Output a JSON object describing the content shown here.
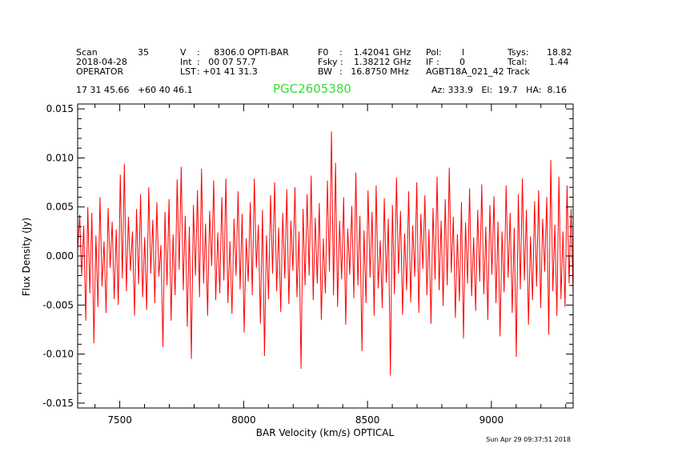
{
  "header": {
    "row1": [
      {
        "k": "Scan",
        "v": "35"
      },
      {
        "k": "V",
        "v": ":     8306.0 OPTI-BAR"
      },
      {
        "k": "F0",
        "v": ":    1.42041 GHz"
      },
      {
        "k": "Pol:",
        "v": "l"
      },
      {
        "k": "Tsys:",
        "v": "18.82"
      }
    ],
    "row2": [
      {
        "k": "2018-04-28",
        "v": ""
      },
      {
        "k": "Int",
        "v": ":   00 07 57.7"
      },
      {
        "k": "Fsky :",
        "v": "1.38212 GHz"
      },
      {
        "k": "IF :",
        "v": "0"
      },
      {
        "k": "Tcal:",
        "v": "1.44"
      }
    ],
    "row3": [
      {
        "k": "OPERATOR",
        "v": ""
      },
      {
        "k": "LST",
        "v": ": +01 41 31.3"
      },
      {
        "k": "BW",
        "v": ":   16.8750 MHz"
      },
      {
        "k": "AGBT18A_021_42 Track",
        "v": ""
      }
    ],
    "coords": "17 31 45.66   +60 40 46.1",
    "source_name": "PGC2605380",
    "pointing": "Az: 333.9   El:  19.7   HA:  8.16"
  },
  "timestamp": "Sun Apr 29 09:37:51 2018",
  "colors": {
    "trace": "#ff0000",
    "source": "#33dd33",
    "axis": "#000000"
  },
  "chart_data": {
    "type": "line",
    "title": "PGC2605380",
    "xlabel": "BAR Velocity (km/s) OPTICAL",
    "ylabel": "Flux Density (Jy)",
    "xlim": [
      7330,
      9330
    ],
    "ylim": [
      -0.0155,
      0.0155
    ],
    "xticks": [
      7500,
      8000,
      8500,
      9000
    ],
    "xtick_labels": [
      "7500",
      "8000",
      "8500",
      "9000"
    ],
    "yticks": [
      -0.015,
      -0.01,
      -0.005,
      0.0,
      0.005,
      0.01,
      0.015
    ],
    "ytick_labels": [
      "-0.015",
      "-0.010",
      "-0.005",
      "0.000",
      "0.005",
      "0.010",
      "0.015"
    ],
    "series": [
      {
        "name": "Flux density",
        "x_start": 7330,
        "x_end": 9330,
        "values": [
          0.0005,
          0.0042,
          -0.002,
          0.0031,
          -0.0066,
          0.005,
          -0.0038,
          0.0044,
          -0.0089,
          0.0021,
          -0.0052,
          0.006,
          -0.0031,
          0.0015,
          -0.0058,
          0.0049,
          -0.0012,
          0.0035,
          -0.0044,
          0.0027,
          -0.005,
          0.0083,
          -0.0023,
          0.0094,
          -0.0036,
          0.004,
          -0.0015,
          0.0025,
          -0.0061,
          0.0048,
          -0.0029,
          0.0063,
          -0.0042,
          0.0019,
          -0.0055,
          0.007,
          -0.0018,
          0.0037,
          -0.0048,
          0.0055,
          -0.0021,
          0.0011,
          -0.0093,
          0.0045,
          -0.003,
          0.0058,
          -0.0066,
          0.0022,
          -0.004,
          0.0078,
          -0.0014,
          0.0091,
          -0.0035,
          0.0041,
          -0.0072,
          0.003,
          -0.0105,
          0.0052,
          -0.002,
          0.0067,
          -0.0042,
          0.0089,
          -0.0028,
          0.0033,
          -0.0061,
          0.0046,
          -0.001,
          0.0077,
          -0.0045,
          0.0024,
          -0.0038,
          0.006,
          -0.0025,
          0.0079,
          -0.0048,
          0.0015,
          -0.0059,
          0.0038,
          -0.002,
          0.0066,
          -0.0034,
          0.0043,
          -0.0078,
          0.0018,
          -0.0026,
          0.0055,
          -0.004,
          0.0079,
          -0.0012,
          0.0032,
          -0.0069,
          0.0047,
          -0.0102,
          0.0021,
          -0.0044,
          0.0062,
          -0.0018,
          0.0075,
          -0.0036,
          0.0029,
          -0.0057,
          0.0044,
          -0.0023,
          0.0068,
          -0.0049,
          0.0036,
          -0.0015,
          0.007,
          -0.0042,
          0.0025,
          -0.0115,
          0.0048,
          -0.003,
          0.0063,
          -0.002,
          0.0082,
          -0.0045,
          0.0039,
          -0.0028,
          0.0054,
          -0.0065,
          0.0018,
          -0.0038,
          0.0077,
          -0.0016,
          0.0127,
          -0.004,
          0.0095,
          -0.0052,
          0.0036,
          -0.0024,
          0.006,
          -0.007,
          0.0028,
          -0.0019,
          0.0051,
          -0.0043,
          0.0085,
          -0.003,
          0.0041,
          -0.0097,
          0.0026,
          -0.0048,
          0.0067,
          -0.0022,
          0.0045,
          -0.0061,
          0.0072,
          -0.0033,
          0.0016,
          -0.0053,
          0.0059,
          -0.0027,
          0.0038,
          -0.0122,
          0.0052,
          -0.0039,
          0.008,
          -0.0018,
          0.0046,
          -0.006,
          0.0023,
          -0.0035,
          0.0066,
          -0.0047,
          0.0031,
          -0.0021,
          0.0075,
          -0.0058,
          0.0043,
          -0.0013,
          0.0062,
          -0.004,
          0.0027,
          -0.0069,
          0.0049,
          -0.0024,
          0.0081,
          -0.0035,
          0.0036,
          -0.0051,
          0.0058,
          -0.003,
          0.009,
          -0.0017,
          0.004,
          -0.0063,
          0.0022,
          -0.0046,
          0.0055,
          -0.0084,
          0.0034,
          -0.0028,
          0.0069,
          -0.0041,
          0.0019,
          -0.0056,
          0.0047,
          -0.0026,
          0.0073,
          -0.0039,
          0.003,
          -0.0065,
          0.0052,
          -0.0019,
          0.0061,
          -0.0048,
          0.0035,
          -0.0082,
          0.0025,
          -0.0037,
          0.0072,
          -0.0022,
          0.0044,
          -0.0058,
          0.0029,
          -0.0103,
          0.0063,
          -0.0034,
          0.0079,
          -0.0025,
          0.0047,
          -0.007,
          0.002,
          -0.0045,
          0.0056,
          -0.0031,
          0.0067,
          -0.0053,
          0.0038,
          -0.0016,
          0.006,
          -0.008,
          0.0098,
          -0.0036,
          0.0032,
          -0.0061,
          0.0081,
          -0.0044,
          0.0025,
          -0.0052,
          0.0072,
          -0.0028,
          0.0048,
          -0.0039
        ]
      }
    ]
  }
}
